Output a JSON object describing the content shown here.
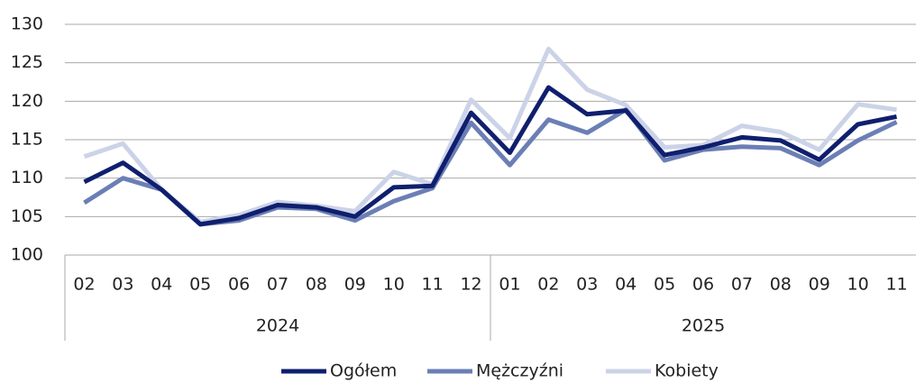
{
  "chart_data": {
    "type": "line",
    "groups": [
      {
        "label": "2024",
        "categories": [
          "02",
          "03",
          "04",
          "05",
          "06",
          "07",
          "08",
          "09",
          "10",
          "11",
          "12"
        ]
      },
      {
        "label": "2025",
        "categories": [
          "01",
          "02",
          "03",
          "04",
          "05",
          "06",
          "07",
          "08",
          "09",
          "10",
          "11"
        ]
      }
    ],
    "series": [
      {
        "name": "Ogółem",
        "color": "#0f1f6e",
        "values": [
          109.5,
          112,
          108.5,
          104,
          104.8,
          106.5,
          106.2,
          105,
          108.8,
          109,
          118.5,
          113.3,
          121.8,
          118.3,
          118.8,
          113,
          114,
          115.3,
          114.9,
          112.4,
          117,
          118
        ]
      },
      {
        "name": "Mężczyźni",
        "color": "#6b7fb5",
        "values": [
          106.8,
          110,
          108.5,
          104,
          104.5,
          106.2,
          106,
          104.5,
          107,
          108.7,
          117.2,
          111.7,
          117.6,
          115.9,
          118.9,
          112.3,
          113.7,
          114.1,
          113.9,
          111.7,
          114.9,
          117.3
        ]
      },
      {
        "name": "Kobiety",
        "color": "#ccd3e8",
        "values": [
          112.8,
          114.5,
          108.5,
          104.3,
          105.2,
          106.9,
          106.4,
          105.7,
          110.8,
          109.2,
          120.2,
          115.2,
          126.8,
          121.5,
          119.5,
          114,
          114.3,
          116.8,
          116,
          113.7,
          119.6,
          118.9
        ]
      }
    ],
    "ylim": [
      100,
      130
    ],
    "yticks": [
      100,
      105,
      110,
      115,
      120,
      125,
      130
    ],
    "grid": true
  }
}
